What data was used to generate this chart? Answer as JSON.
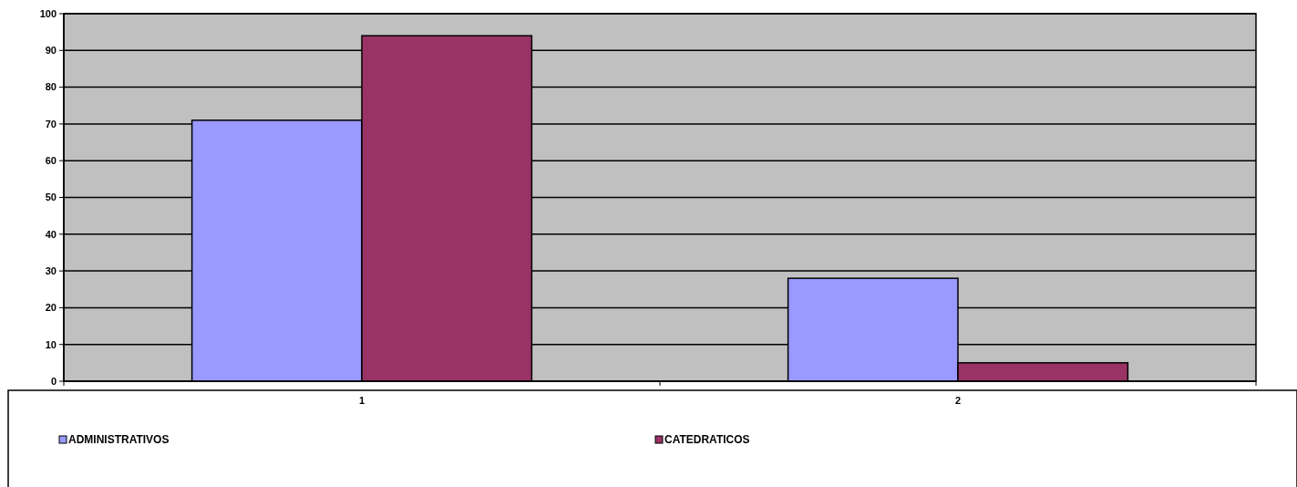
{
  "chart_data": {
    "type": "bar",
    "categories": [
      "1",
      "2"
    ],
    "series": [
      {
        "name": "ADMINISTRATIVOS",
        "color": "#9999ff",
        "values": [
          71,
          28
        ]
      },
      {
        "name": "CATEDRATICOS",
        "color": "#993366",
        "values": [
          94,
          5
        ]
      }
    ],
    "ylim": [
      0,
      100
    ],
    "yticks": [
      0,
      10,
      20,
      30,
      40,
      50,
      60,
      70,
      80,
      90,
      100
    ],
    "grid": "y",
    "legend": "bottom"
  }
}
